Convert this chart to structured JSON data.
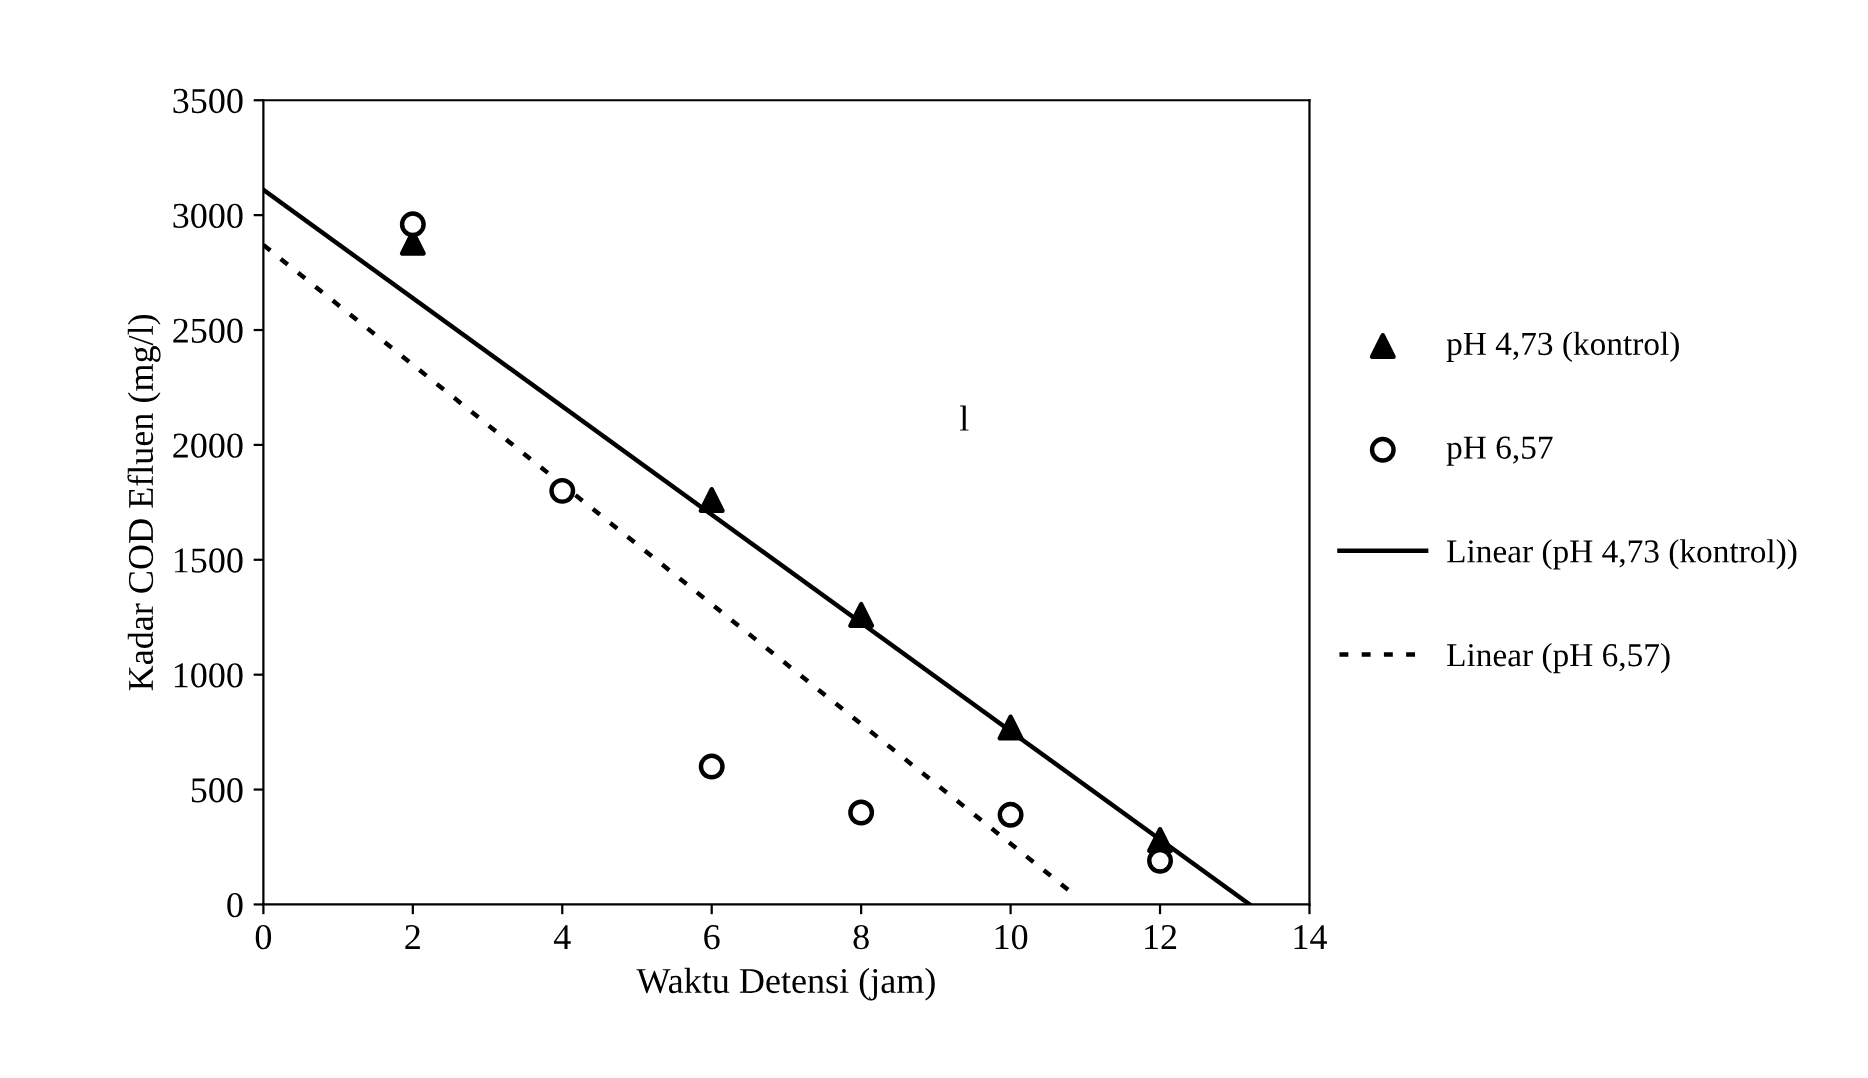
{
  "chart_data": {
    "type": "scatter",
    "xlabel": "Waktu Detensi (jam)",
    "ylabel": "Kadar COD Efluen (mg/l)",
    "x": [
      2,
      4,
      6,
      8,
      10,
      12
    ],
    "series": [
      {
        "name": "pH 4,73 (kontrol)",
        "color": "#000000",
        "marker": "triangle",
        "values": [
          2880,
          null,
          1760,
          1260,
          770,
          280
        ]
      },
      {
        "name": "pH 6,57",
        "color": "#000000",
        "marker": "circle",
        "values": [
          2960,
          1800,
          600,
          400,
          390,
          190
        ]
      },
      {
        "name": "Linear (pH 4,73 (kontrol))",
        "type": "line",
        "color": "#000000",
        "line_style": "solid",
        "x": [
          0,
          13.2
        ],
        "values": [
          3110,
          0
        ]
      },
      {
        "name": "Linear (pH 6,57)",
        "type": "line",
        "color": "#000000",
        "line_style": "dotted",
        "x": [
          0,
          10.9
        ],
        "values": [
          2870,
          30
        ]
      }
    ],
    "xlim": [
      0,
      14
    ],
    "ylim": [
      0,
      3500
    ],
    "xticks": [
      0,
      2,
      4,
      6,
      8,
      10,
      12,
      14
    ],
    "yticks": [
      0,
      500,
      1000,
      1500,
      2000,
      2500,
      3000,
      3500
    ],
    "annotations": [
      "l"
    ],
    "grid": false,
    "legend": "right"
  }
}
